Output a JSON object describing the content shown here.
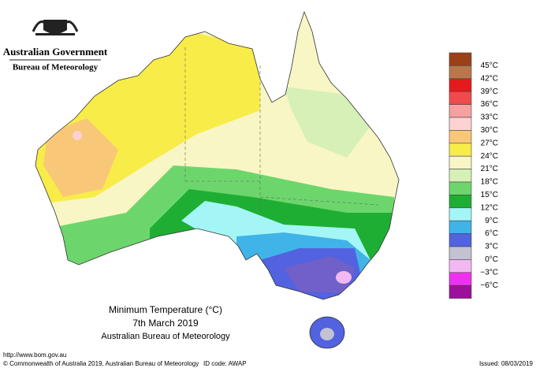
{
  "header": {
    "government": "Australian Government",
    "bureau": "Bureau of Meteorology"
  },
  "map": {
    "title": "Minimum Temperature (°C)",
    "date": "7th March 2019",
    "source": "Australian Bureau of Meteorology"
  },
  "legend": {
    "colors": [
      "#9c4018",
      "#b8784c",
      "#e41a1c",
      "#f04a4a",
      "#f8a0a0",
      "#fcd2d2",
      "#f8c878",
      "#f8ec48",
      "#f8f6c4",
      "#d6f0b8",
      "#6cd66c",
      "#1fae34",
      "#a4f6f6",
      "#40b4e8",
      "#5262e0",
      "#c2c2d2",
      "#f2b8f2",
      "#f030f0",
      "#9c109c"
    ],
    "labels": [
      "45°C",
      "42°C",
      "39°C",
      "36°C",
      "33°C",
      "30°C",
      "27°C",
      "24°C",
      "21°C",
      "18°C",
      "15°C",
      "12°C",
      "9°C",
      "6°C",
      "3°C",
      "0°C",
      "−3°C",
      "−6°C"
    ]
  },
  "footer": {
    "url": "http://www.bom.gov.au",
    "copyright": "© Commonwealth of Australia 2019, Australian Bureau of Meteorology",
    "id_code": "ID code: AWAP",
    "issued": "Issued: 08/03/2019"
  }
}
